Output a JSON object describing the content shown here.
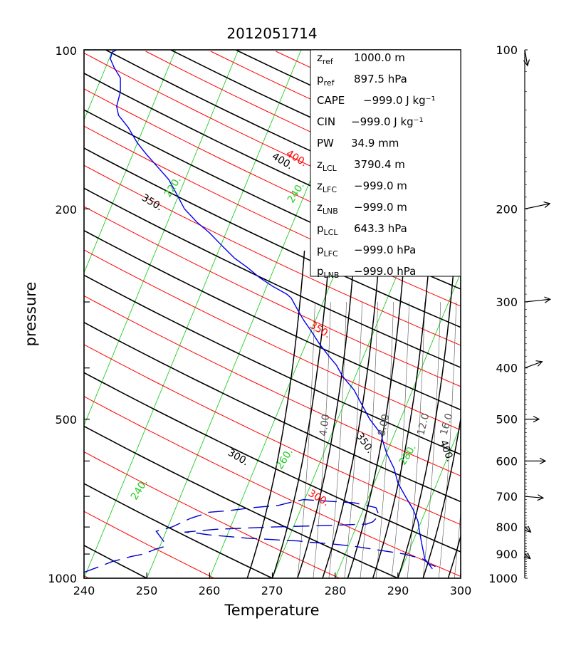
{
  "chart_data": {
    "type": "line",
    "title": "2012051714",
    "xlabel": "Temperature",
    "ylabel": "pressure",
    "xlim": [
      240,
      300
    ],
    "ylim": [
      1000,
      100
    ],
    "y_scale": "log",
    "x_ticks": [
      "240",
      "250",
      "260",
      "270",
      "280",
      "290",
      "300"
    ],
    "y_ticks": [
      "100",
      "200",
      "500",
      "1000"
    ],
    "colors": {
      "temperature": "#0000ee",
      "dewpoint": "#0000cc",
      "dry_adiabat": "#000000",
      "moist_adiabat": "#ff0000",
      "isotherm": "#22cc22",
      "mixing_ratio": "#555555"
    },
    "series": [
      {
        "style": "solid",
        "x": [
          295.5,
          294.3,
          293.8,
          293.4,
          293.2,
          292.4,
          291.2,
          290.0,
          289.4,
          288.2,
          287.8,
          287.5,
          287.4,
          285.5,
          284.5,
          283.0,
          281.2,
          280.2,
          279.0,
          277.5,
          276.5,
          276.0,
          275.0,
          274.0,
          273.0,
          272.3,
          270.0,
          268.0,
          266.0,
          264.0,
          262.0,
          260.0,
          258.0,
          256.0,
          254.5,
          253.5,
          252.0,
          250.0,
          248.5,
          247.0,
          245.5,
          245.2,
          245.8,
          245.8,
          244.8,
          244.2,
          244.5,
          245.2
        ],
        "y": [
          960,
          920,
          860,
          810,
          780,
          740,
          700,
          660,
          620,
          580,
          560,
          545,
          535,
          500,
          475,
          440,
          415,
          395,
          380,
          360,
          345,
          338,
          325,
          310,
          295,
          290,
          280,
          270,
          258,
          248,
          235,
          222,
          212,
          200,
          185,
          176,
          168,
          158,
          150,
          140,
          133,
          128,
          120,
          113,
          108,
          104,
          101,
          100
        ]
      },
      {
        "style": "dashed",
        "x": [
          296.0,
          295.0,
          294.0,
          291.0,
          287.0,
          283.0,
          279.0,
          276.0,
          274.0,
          272.0,
          270.0,
          266.0,
          262.0,
          260.0,
          259.0,
          257.5,
          256.0,
          261.0,
          270.0,
          278.0,
          285.0,
          286.0,
          287.0,
          286.5,
          283.0,
          279.0,
          275.0,
          273.0,
          271.0,
          267.0,
          263.0,
          260.0,
          258.5,
          257.0,
          256.0,
          254.0,
          251.5,
          252.8,
          253.0,
          251.5,
          250.5,
          249.5,
          248.5,
          247.5,
          246.0,
          244.5,
          243.0,
          241.5,
          240.0
        ],
        "y": [
          950,
          940,
          920,
          900,
          885,
          870,
          860,
          855,
          850,
          848,
          845,
          840,
          832,
          828,
          825,
          820,
          818,
          808,
          800,
          795,
          790,
          782,
          760,
          735,
          720,
          715,
          710,
          718,
          728,
          735,
          745,
          750,
          760,
          770,
          780,
          800,
          815,
          855,
          870,
          880,
          890,
          900,
          905,
          910,
          920,
          930,
          945,
          960,
          975
        ]
      }
    ],
    "annotations": {
      "dry_adiabat_labels": [
        "400.",
        "350.",
        "300."
      ],
      "moist_adiabat_labels": [
        "400.",
        "350.",
        "300."
      ],
      "isotherm_labels": [
        "220.",
        "240.",
        "260.",
        "280.",
        "240."
      ],
      "mixing_ratio_labels": [
        "4.00",
        "8.00",
        "12.0",
        "16.0"
      ]
    },
    "info_box": [
      {
        "name": "z",
        "sub": "ref",
        "value": "1000.0 m"
      },
      {
        "name": "p",
        "sub": "ref",
        "value": "897.5 hPa"
      },
      {
        "name": "CAPE",
        "sub": "",
        "value": "−999.0 J kg⁻¹"
      },
      {
        "name": "CIN",
        "sub": "",
        "value": "−999.0 J kg⁻¹"
      },
      {
        "name": "PW",
        "sub": "",
        "value": "34.9 mm"
      },
      {
        "name": "z",
        "sub": "LCL",
        "value": "3790.4 m"
      },
      {
        "name": "z",
        "sub": "LFC",
        "value": "−999.0 m"
      },
      {
        "name": "z",
        "sub": "LNB",
        "value": "−999.0 m"
      },
      {
        "name": "p",
        "sub": "LCL",
        "value": "643.3 hPa"
      },
      {
        "name": "p",
        "sub": "LFC",
        "value": "−999.0 hPa"
      },
      {
        "name": "p",
        "sub": "LNB",
        "value": "−999.0 hPa"
      }
    ],
    "wind_profile": {
      "labels": [
        "100",
        "200",
        "300",
        "400",
        "500",
        "600",
        "700",
        "800",
        "900",
        "1000"
      ],
      "barbs": [
        {
          "p": 100,
          "dir_deg": 80,
          "rel_len": 0.45
        },
        {
          "p": 200,
          "dir_deg": -12,
          "rel_len": 0.72
        },
        {
          "p": 300,
          "dir_deg": -6,
          "rel_len": 0.72
        },
        {
          "p": 400,
          "dir_deg": -20,
          "rel_len": 0.52
        },
        {
          "p": 500,
          "dir_deg": 0,
          "rel_len": 0.4
        },
        {
          "p": 600,
          "dir_deg": 0,
          "rel_len": 0.58
        },
        {
          "p": 700,
          "dir_deg": 5,
          "rel_len": 0.52
        },
        {
          "p": 800,
          "dir_deg": 40,
          "rel_len": 0.22
        },
        {
          "p": 900,
          "dir_deg": 40,
          "rel_len": 0.2
        }
      ]
    }
  }
}
